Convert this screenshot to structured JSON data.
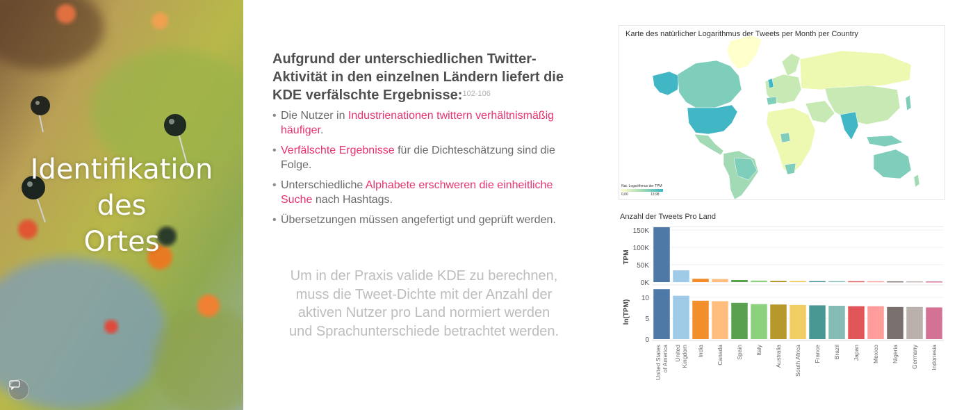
{
  "left": {
    "title": "Identifikation\ndes\nOrtes",
    "chat_icon": "speech-bubble-icon"
  },
  "heading": {
    "text": "Aufgrund der unterschiedlichen Twitter-Aktivität in den einzelnen Ländern liefert die KDE verfälschte Ergebnisse:",
    "ref": "102-106"
  },
  "bullets": [
    {
      "parts": [
        {
          "t": "Die Nutzer in ",
          "hl": false
        },
        {
          "t": "Industrienationen twittern verhältnismäßig häufiger",
          "hl": true
        },
        {
          "t": ".",
          "hl": false
        }
      ]
    },
    {
      "parts": [
        {
          "t": "Verfälschte Ergebnisse",
          "hl": true
        },
        {
          "t": " für die Dichteschätzung sind die Folge.",
          "hl": false
        }
      ]
    },
    {
      "parts": [
        {
          "t": "Unterschiedliche ",
          "hl": false
        },
        {
          "t": "Alphabete erschweren die einheitliche Suche",
          "hl": true
        },
        {
          "t": " nach Hashtags.",
          "hl": false
        }
      ]
    },
    {
      "parts": [
        {
          "t": "Übersetzungen müssen angefertigt und geprüft werden.",
          "hl": false
        }
      ]
    }
  ],
  "conclusion": "Um in der Praxis valide KDE zu berechnen, muss die Tweet-Dichte mit der Anzahl der aktiven Nutzer pro Land normiert werden und Sprachunterschiede betrachtet werden.",
  "map": {
    "title": "Karte des natürlicher Logarithmus der Tweets per Month per Country",
    "legend_title": "Nat. Logarithmus der TPM",
    "legend_min": "0,00",
    "legend_max": "13,98"
  },
  "chart_data": [
    {
      "type": "bar",
      "title": "Anzahl der Tweets Pro Land",
      "ylabel": "TPM",
      "ylim": [
        0,
        160000
      ],
      "yticks": [
        "150K",
        "100K",
        "50K",
        "0K"
      ],
      "ytick_values": [
        150000,
        100000,
        50000,
        0
      ],
      "categories": [
        "United States of America",
        "United Kingdom",
        "India",
        "Canada",
        "Spain",
        "Italy",
        "Australia",
        "South Africa",
        "France",
        "Brazil",
        "Japan",
        "Mexico",
        "Nigeria",
        "Germany",
        "Indonesia"
      ],
      "category_labels": [
        [
          "United States",
          "of America"
        ],
        [
          "United",
          "Kingdom"
        ],
        [
          "India"
        ],
        [
          "Canada"
        ],
        [
          "Spain"
        ],
        [
          "Italy"
        ],
        [
          "Australia"
        ],
        [
          "South Africa"
        ],
        [
          "France"
        ],
        [
          "Brazil"
        ],
        [
          "Japan"
        ],
        [
          "Mexico"
        ],
        [
          "Nigeria"
        ],
        [
          "Germany"
        ],
        [
          "Indonesia"
        ]
      ],
      "values": [
        158000,
        34000,
        10000,
        9000,
        6000,
        4500,
        4000,
        3800,
        3200,
        3000,
        2700,
        2700,
        2300,
        2300,
        2000
      ],
      "colors": [
        "#4e79a7",
        "#a0cbe8",
        "#f28e2b",
        "#ffbe7d",
        "#59a14f",
        "#8cd17d",
        "#b6992d",
        "#f1ce63",
        "#499894",
        "#86bcb6",
        "#e15759",
        "#ff9d9a",
        "#79706e",
        "#bab0ac",
        "#d37295"
      ]
    },
    {
      "type": "bar",
      "ylabel": "ln(TPM)",
      "ylim": [
        0,
        13
      ],
      "yticks": [
        "10",
        "5",
        "0"
      ],
      "ytick_values": [
        10,
        5,
        0
      ],
      "categories": [
        "United States of America",
        "United Kingdom",
        "India",
        "Canada",
        "Spain",
        "Italy",
        "Australia",
        "South Africa",
        "France",
        "Brazil",
        "Japan",
        "Mexico",
        "Nigeria",
        "Germany",
        "Indonesia"
      ],
      "values": [
        11.97,
        10.4,
        9.2,
        9.1,
        8.7,
        8.4,
        8.3,
        8.2,
        8.1,
        8.0,
        7.9,
        7.9,
        7.7,
        7.7,
        7.6
      ]
    }
  ]
}
